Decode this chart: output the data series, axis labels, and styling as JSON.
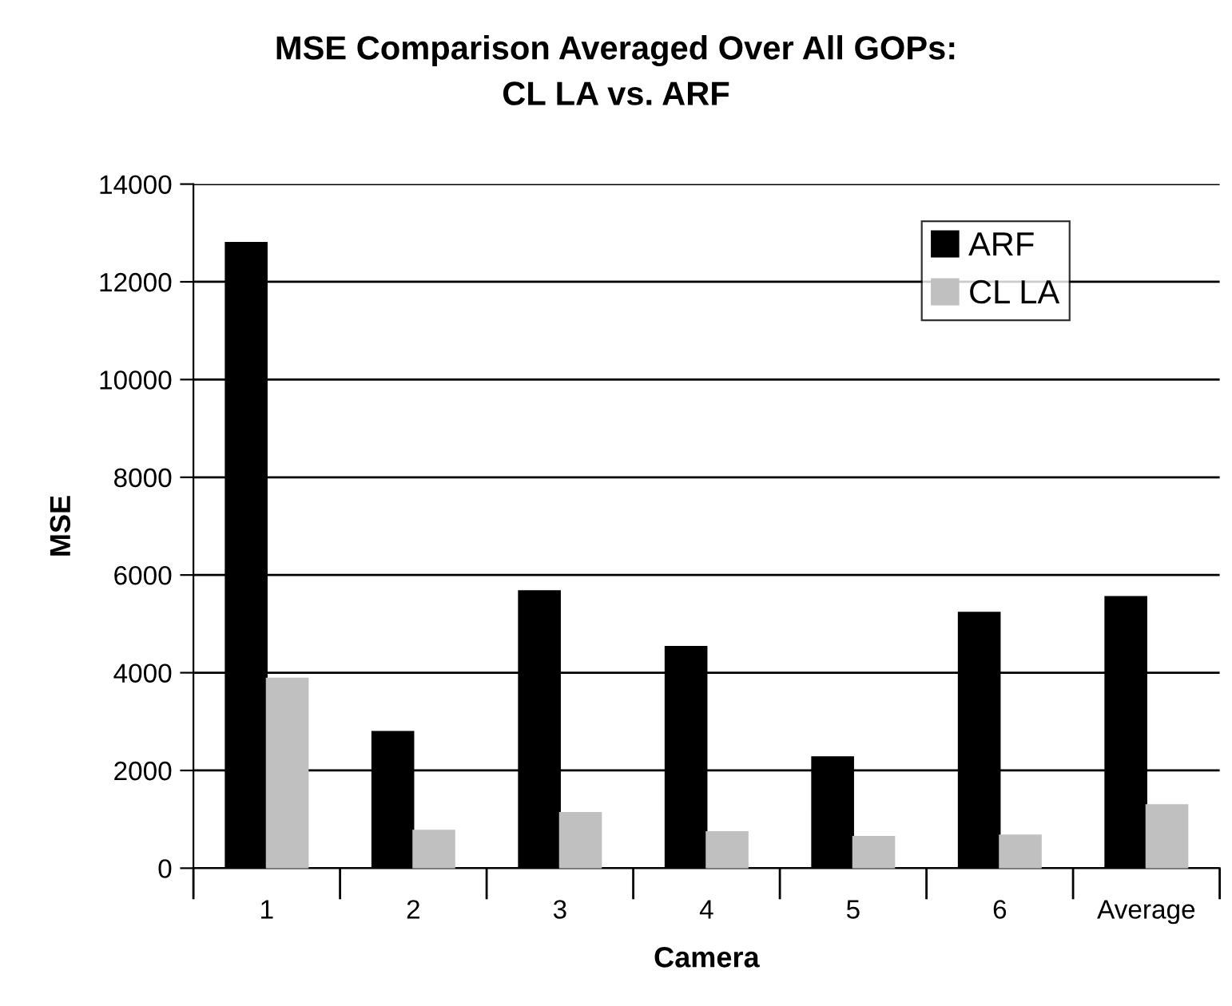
{
  "chart_data": {
    "type": "bar",
    "title": "MSE Comparison Averaged Over All GOPs:\nCL LA vs. ARF",
    "xlabel": "Camera",
    "ylabel": "MSE",
    "categories": [
      "1",
      "2",
      "3",
      "4",
      "5",
      "6",
      "Average"
    ],
    "series": [
      {
        "name": "ARF",
        "color": "#000000",
        "values": [
          12800,
          2790,
          5670,
          4530,
          2270,
          5230,
          5550
        ]
      },
      {
        "name": "CL LA",
        "color": "#c0c0c0",
        "values": [
          3880,
          770,
          1130,
          740,
          640,
          670,
          1290
        ]
      }
    ],
    "ylim": [
      0,
      14000
    ],
    "yticks": [
      0,
      2000,
      4000,
      6000,
      8000,
      10000,
      12000,
      14000
    ],
    "grid": "y",
    "legend": "top right"
  }
}
